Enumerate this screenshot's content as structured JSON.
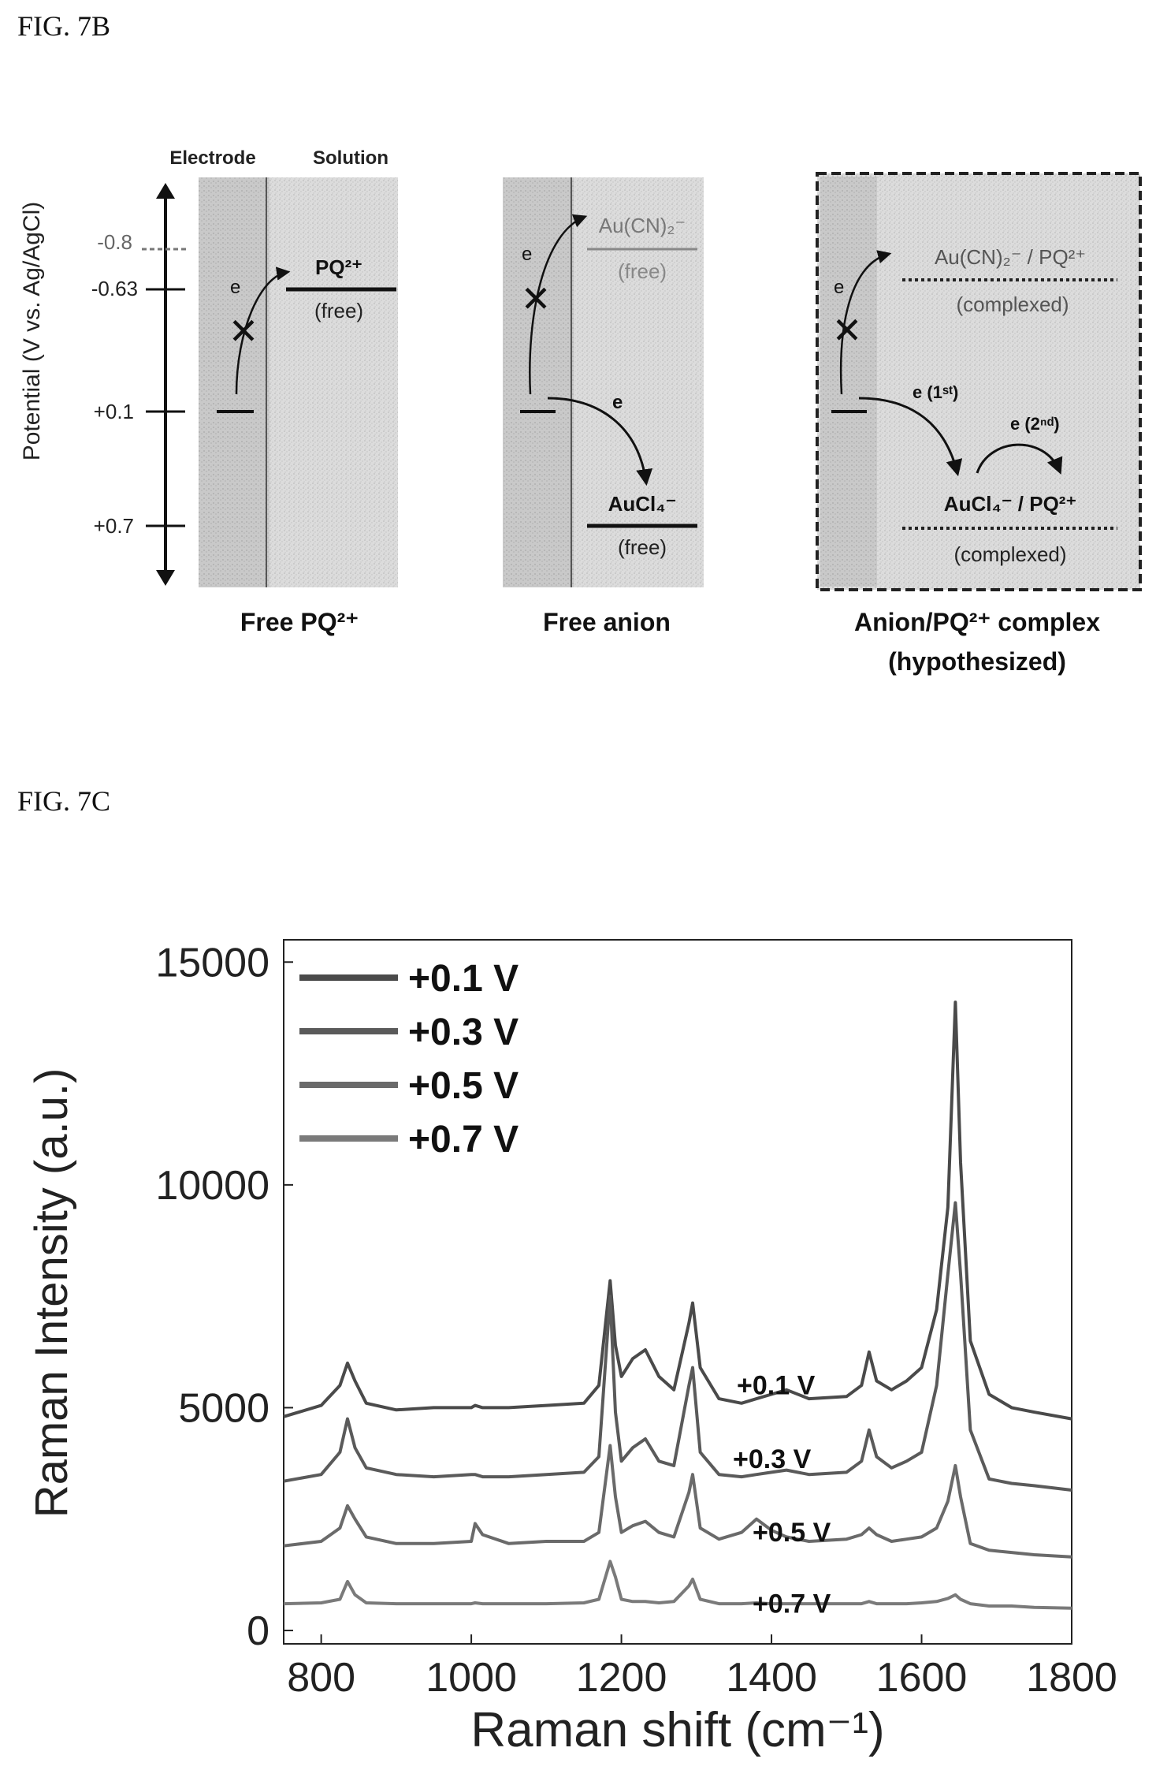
{
  "fig7b": {
    "label": "FIG. 7B",
    "y_axis_label": "Potential (V vs. Ag/AgCl)",
    "y_ticks": [
      "-0.8",
      "-0.63",
      "+0.1",
      "+0.7"
    ],
    "header_electrode": "Electrode",
    "header_solution": "Solution",
    "electron": "e",
    "panels": [
      {
        "caption": "Free PQ²⁺",
        "species": [
          {
            "name": "PQ²⁺",
            "state": "(free)"
          }
        ]
      },
      {
        "caption": "Free anion",
        "species": [
          {
            "name": "Au(CN)₂⁻",
            "state": "(free)"
          },
          {
            "name": "AuCl₄⁻",
            "state": "(free)"
          }
        ]
      },
      {
        "caption": "Anion/PQ²⁺ complex",
        "caption2": "(hypothesized)",
        "species": [
          {
            "name": "Au(CN)₂⁻ / PQ²⁺",
            "state": "(complexed)"
          },
          {
            "name": "AuCl₄⁻ / PQ²⁺",
            "state": "(complexed)"
          }
        ],
        "transfer_first": "e (1ˢᵗ)",
        "transfer_second": "e (2ⁿᵈ)"
      }
    ]
  },
  "fig7c": {
    "label": "FIG. 7C"
  },
  "chart_data": {
    "type": "line",
    "title": "",
    "xlabel": "Raman shift (cm⁻¹)",
    "ylabel": "Raman Intensity (a.u.)",
    "xlim": [
      750,
      1800
    ],
    "ylim": [
      -300,
      15500
    ],
    "x_ticks": [
      "800",
      "1000",
      "1200",
      "1400",
      "1600",
      "1800"
    ],
    "y_ticks": [
      "0",
      "5000",
      "10000",
      "15000"
    ],
    "legend_position": "top-left",
    "x": [
      750,
      800,
      825,
      835,
      845,
      860,
      900,
      950,
      1000,
      1005,
      1015,
      1050,
      1100,
      1150,
      1170,
      1185,
      1192,
      1200,
      1215,
      1232,
      1250,
      1270,
      1290,
      1295,
      1305,
      1330,
      1360,
      1380,
      1400,
      1420,
      1450,
      1500,
      1520,
      1530,
      1540,
      1560,
      1580,
      1600,
      1620,
      1635,
      1645,
      1652,
      1665,
      1690,
      1720,
      1750,
      1800
    ],
    "series": [
      {
        "name": "+0.1 V",
        "color": "#4a4a4a",
        "values": [
          4800,
          5050,
          5500,
          6000,
          5600,
          5100,
          4950,
          5000,
          5000,
          5050,
          5000,
          5000,
          5050,
          5100,
          5500,
          7850,
          6400,
          5700,
          6100,
          6300,
          5700,
          5400,
          6900,
          7350,
          5900,
          5200,
          5100,
          5200,
          5300,
          5400,
          5200,
          5250,
          5500,
          6250,
          5600,
          5400,
          5600,
          5900,
          7200,
          9500,
          14100,
          10500,
          6500,
          5300,
          5000,
          4900,
          4750
        ]
      },
      {
        "name": "+0.3 V",
        "color": "#5a5a5a",
        "values": [
          3350,
          3500,
          4000,
          4750,
          4100,
          3650,
          3500,
          3450,
          3500,
          3500,
          3450,
          3450,
          3500,
          3550,
          3900,
          7500,
          4900,
          3800,
          4100,
          4300,
          3800,
          3700,
          5500,
          5900,
          4000,
          3500,
          3450,
          3500,
          3550,
          3600,
          3500,
          3550,
          3800,
          4500,
          3900,
          3650,
          3800,
          4000,
          5500,
          8000,
          9600,
          8000,
          4500,
          3400,
          3300,
          3250,
          3150
        ]
      },
      {
        "name": "+0.5 V",
        "color": "#6a6a6a",
        "values": [
          1900,
          2000,
          2300,
          2800,
          2500,
          2100,
          1950,
          1950,
          2000,
          2400,
          2150,
          1950,
          2000,
          2000,
          2200,
          4150,
          3000,
          2200,
          2350,
          2450,
          2200,
          2100,
          3100,
          3500,
          2300,
          2050,
          2200,
          2500,
          2250,
          2100,
          2000,
          2050,
          2150,
          2300,
          2150,
          2000,
          2050,
          2100,
          2300,
          2900,
          3700,
          3000,
          1950,
          1800,
          1750,
          1700,
          1650
        ]
      },
      {
        "name": "+0.7 V",
        "color": "#7a7a7a",
        "values": [
          600,
          620,
          700,
          1100,
          800,
          620,
          600,
          600,
          600,
          620,
          600,
          600,
          600,
          620,
          700,
          1550,
          1200,
          700,
          650,
          650,
          620,
          650,
          1000,
          1150,
          700,
          600,
          600,
          620,
          600,
          600,
          600,
          600,
          600,
          650,
          600,
          600,
          600,
          620,
          650,
          720,
          800,
          700,
          600,
          550,
          550,
          520,
          500
        ]
      }
    ],
    "peak_labels": [
      "+0.1 V",
      "+0.3 V",
      "+0.5 V",
      "+0.7 V"
    ]
  }
}
